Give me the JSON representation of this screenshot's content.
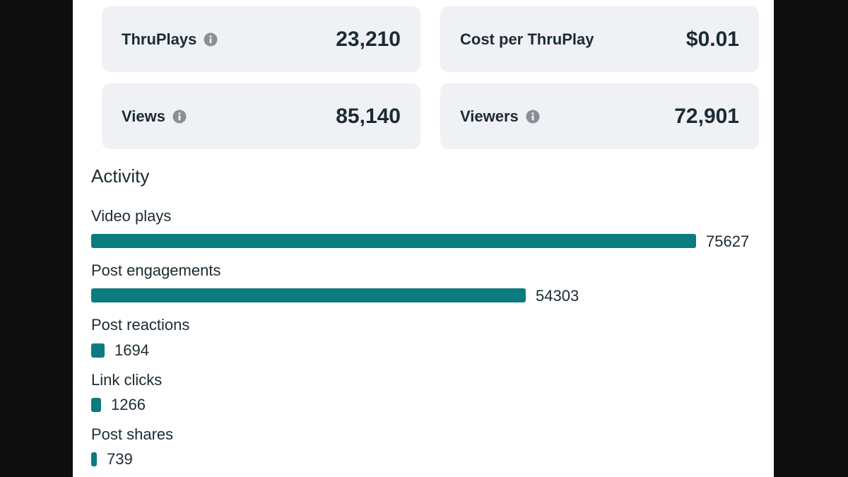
{
  "metrics": [
    {
      "label": "ThruPlays",
      "value": "23,210",
      "info": true
    },
    {
      "label": "Cost per ThruPlay",
      "value": "$0.01",
      "info": false
    },
    {
      "label": "Views",
      "value": "85,140",
      "info": true
    },
    {
      "label": "Viewers",
      "value": "72,901",
      "info": true
    }
  ],
  "activity": {
    "title": "Activity",
    "max": 75627,
    "bar_color": "#0a7c80",
    "items": [
      {
        "label": "Video plays",
        "value": 75627,
        "value_text": "75627"
      },
      {
        "label": "Post engagements",
        "value": 54303,
        "value_text": "54303"
      },
      {
        "label": "Post reactions",
        "value": 1694,
        "value_text": "1694"
      },
      {
        "label": "Link clicks",
        "value": 1266,
        "value_text": "1266"
      },
      {
        "label": "Post shares",
        "value": 739,
        "value_text": "739"
      }
    ]
  },
  "icons": {
    "info": "info-icon"
  }
}
